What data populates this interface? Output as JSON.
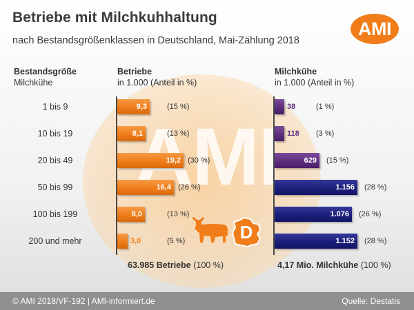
{
  "header": {
    "title": "Betriebe mit Milchkuhhaltung",
    "subtitle": "nach Bestandsgrößenklassen in Deutschland, Mai-Zählung 2018",
    "logo_text": "AMI",
    "watermark_text": "AMI"
  },
  "columns": {
    "category": {
      "line1": "Bestandsgröße",
      "line2": "Milchkühe"
    },
    "betriebe": {
      "line1": "Betriebe",
      "line2": "in 1.000 (Anteil in %)"
    },
    "kuehe": {
      "line1": "Milchkühe",
      "line2": "in 1.000 (Anteil in %)"
    }
  },
  "totals": {
    "betriebe_bold": "63.985 Betriebe",
    "betriebe_pct": "(100 %)",
    "kuehe_bold": "4,17 Mio. Milchkühe",
    "kuehe_pct": "(100 %)"
  },
  "footer": {
    "left": "© AMI 2018/VF-192 | AMI-informiert.de",
    "right": "Quelle:  Destatis"
  },
  "icons": [
    "cow-icon",
    "germany-d-icon"
  ],
  "colors": {
    "orange": "#f07d1a",
    "purple": "#5e2d7f",
    "navy": "#1c1f78",
    "mid_purple": "#3b267c"
  },
  "chart_data": [
    {
      "type": "bar",
      "orientation": "horizontal",
      "title": "Betriebe",
      "unit": "in 1.000 (Anteil in %)",
      "categories": [
        "1 bis 9",
        "10 bis 19",
        "20 bis 49",
        "50 bis 99",
        "100 bis 199",
        "200 und mehr"
      ],
      "values": [
        9.3,
        8.1,
        19.2,
        16.4,
        8.0,
        3.0
      ],
      "value_labels": [
        "9,3",
        "8,1",
        "19,2",
        "16,4",
        "8,0",
        "3,0"
      ],
      "share_labels": [
        "(15 %)",
        "(13 %)",
        "(30 %)",
        "(26 %)",
        "(13 %)",
        "(5 %)"
      ],
      "color": "#f07d1a",
      "xlim": [
        0,
        20
      ]
    },
    {
      "type": "bar",
      "orientation": "horizontal",
      "title": "Milchkühe",
      "unit": "in 1.000 (Anteil in %)",
      "categories": [
        "1 bis 9",
        "10 bis 19",
        "20 bis 49",
        "50 bis 99",
        "100 bis 199",
        "200 und mehr"
      ],
      "values": [
        38,
        118,
        629,
        1156,
        1076,
        1152
      ],
      "value_labels": [
        "38",
        "118",
        "629",
        "1.156",
        "1.076",
        "1.152"
      ],
      "share_labels": [
        "(1 %)",
        "(3 %)",
        "(15 %)",
        "(28 %)",
        "(26 %)",
        "(28 %)"
      ],
      "colors": [
        "#5e2d7f",
        "#5e2d7f",
        "#5e2d7f",
        "#1c1f78",
        "#1c1f78",
        "#1c1f78"
      ],
      "xlim": [
        0,
        1156
      ]
    }
  ]
}
